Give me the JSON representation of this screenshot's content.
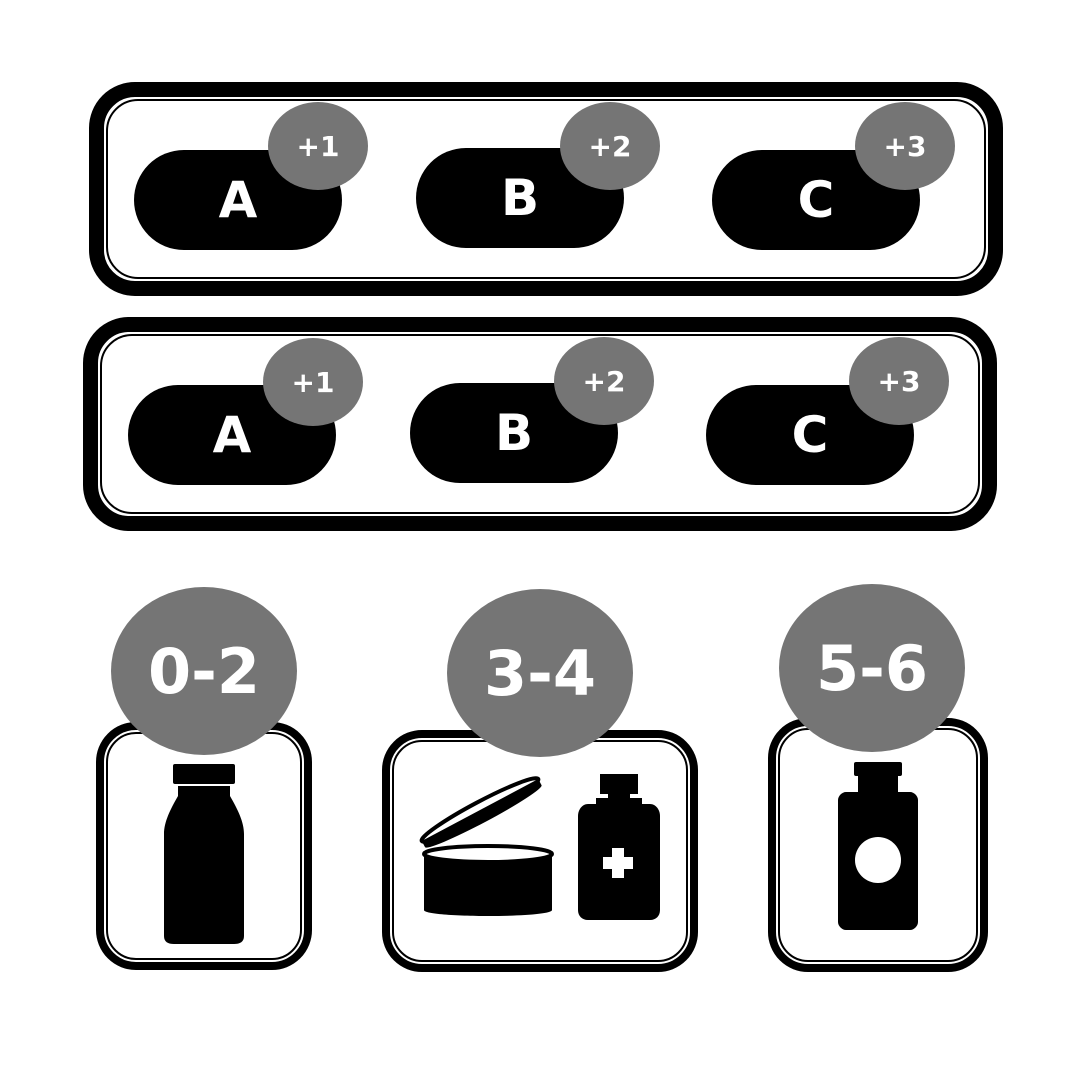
{
  "rows": [
    {
      "options": [
        {
          "letter": "A",
          "bonus": "+1"
        },
        {
          "letter": "B",
          "bonus": "+2"
        },
        {
          "letter": "C",
          "bonus": "+3"
        }
      ]
    },
    {
      "options": [
        {
          "letter": "A",
          "bonus": "+1"
        },
        {
          "letter": "B",
          "bonus": "+2"
        },
        {
          "letter": "C",
          "bonus": "+3"
        }
      ]
    }
  ],
  "cards": [
    {
      "range": "0-2",
      "icon": "milk-bottle-icon"
    },
    {
      "range": "3-4",
      "icon": "open-jar-and-medicine-bottle-icon"
    },
    {
      "range": "5-6",
      "icon": "pill-bottle-icon"
    }
  ],
  "colors": {
    "ink": "#000000",
    "badge": "#757575",
    "text_on_dark": "#ffffff"
  }
}
